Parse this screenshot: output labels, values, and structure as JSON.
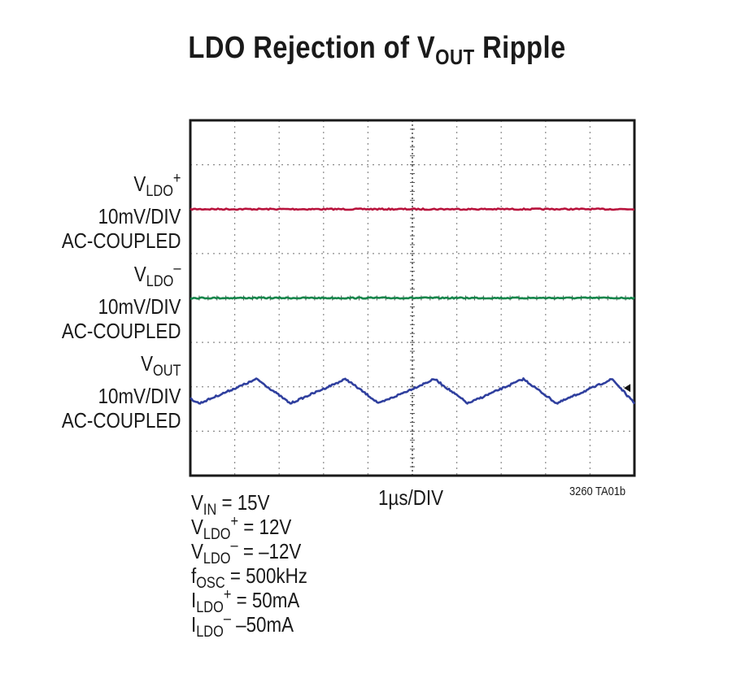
{
  "title_main": "LDO Rejection of V",
  "title_sub": "OUT",
  "title_tail": " Ripple",
  "channels": [
    {
      "sym": "V",
      "sub": "LDO",
      "sup": "+",
      "scale": "10mV/DIV",
      "coupling": "AC-COUPLED"
    },
    {
      "sym": "V",
      "sub": "LDO",
      "sup": "–",
      "scale": "10mV/DIV",
      "coupling": "AC-COUPLED"
    },
    {
      "sym": "V",
      "sub": "OUT",
      "sup": "",
      "scale": "10mV/DIV",
      "coupling": "AC-COUPLED"
    }
  ],
  "timebase": "1µs/DIV",
  "part_number": "3260 TA01b",
  "conditions": [
    {
      "sym": "V",
      "sub": "IN",
      "sup": "",
      "rest": " = 15V"
    },
    {
      "sym": "V",
      "sub": "LDO",
      "sup": "+",
      "rest": " = 12V"
    },
    {
      "sym": "V",
      "sub": "LDO",
      "sup": "–",
      "rest": " = –12V"
    },
    {
      "sym": "f",
      "sub": "OSC",
      "sup": "",
      "rest": " = 500kHz"
    },
    {
      "sym": "I",
      "sub": "LDO",
      "sup": "+",
      "rest": " = 50mA"
    },
    {
      "sym": "I",
      "sub": "LDO",
      "sup": "–",
      "rest": " –50mA"
    }
  ],
  "chart_data": {
    "type": "line",
    "title": "LDO Rejection of VOUT Ripple",
    "x_unit": "µs",
    "x_per_div": 1,
    "y_per_div_mV": 10,
    "xlim": [
      0,
      10
    ],
    "divisions": {
      "x": 10,
      "y": 8
    },
    "grid": true,
    "series": [
      {
        "name": "VLDO+",
        "color": "#b8123c",
        "type": "flat",
        "offset_div": 2.0,
        "amplitude_mV": 0
      },
      {
        "name": "VLDO–",
        "color": "#13854a",
        "type": "flat",
        "offset_div": 4.0,
        "amplitude_mV": 0
      },
      {
        "name": "VOUT",
        "color": "#2f3f9e",
        "type": "triangle",
        "offset_div": 6.1,
        "frequency_kHz": 500,
        "peak_to_peak_mV": 5.5,
        "peaks_us": [
          1.5,
          3.5,
          5.5,
          7.5,
          9.5
        ],
        "valleys_us": [
          0.2,
          2.25,
          4.25,
          6.25,
          8.25,
          10
        ]
      }
    ],
    "markers": [
      {
        "label": "ground reference arrow",
        "series": "VOUT",
        "x_div": 9.8
      }
    ]
  }
}
